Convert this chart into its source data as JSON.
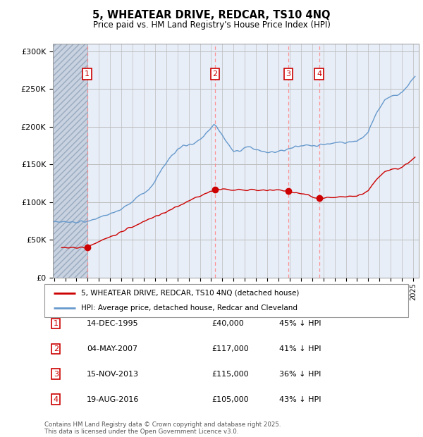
{
  "title": "5, WHEATEAR DRIVE, REDCAR, TS10 4NQ",
  "subtitle": "Price paid vs. HM Land Registry's House Price Index (HPI)",
  "ylim": [
    0,
    310000
  ],
  "yticks": [
    0,
    50000,
    100000,
    150000,
    200000,
    250000,
    300000
  ],
  "xlim_start": 1992.9,
  "xlim_end": 2025.5,
  "transactions": [
    {
      "num": 1,
      "date_x": 1995.96,
      "price": 40000,
      "pct": "45%",
      "label": "14-DEC-1995",
      "price_str": "£40,000"
    },
    {
      "num": 2,
      "date_x": 2007.34,
      "price": 117000,
      "pct": "41%",
      "label": "04-MAY-2007",
      "price_str": "£117,000"
    },
    {
      "num": 3,
      "date_x": 2013.87,
      "price": 115000,
      "pct": "36%",
      "label": "15-NOV-2013",
      "price_str": "£115,000"
    },
    {
      "num": 4,
      "date_x": 2016.63,
      "price": 105000,
      "pct": "43%",
      "label": "19-AUG-2016",
      "price_str": "£105,000"
    }
  ],
  "legend_line1": "5, WHEATEAR DRIVE, REDCAR, TS10 4NQ (detached house)",
  "legend_line2": "HPI: Average price, detached house, Redcar and Cleveland",
  "footer1": "Contains HM Land Registry data © Crown copyright and database right 2025.",
  "footer2": "This data is licensed under the Open Government Licence v3.0.",
  "bg_color": "#e8eef8",
  "hatch_color": "#c8d2e0",
  "grid_color": "#bbbbbb",
  "red_color": "#cc0000",
  "blue_color": "#6699cc",
  "vline_color": "#ff8888",
  "marker_box_color": "#cc0000"
}
